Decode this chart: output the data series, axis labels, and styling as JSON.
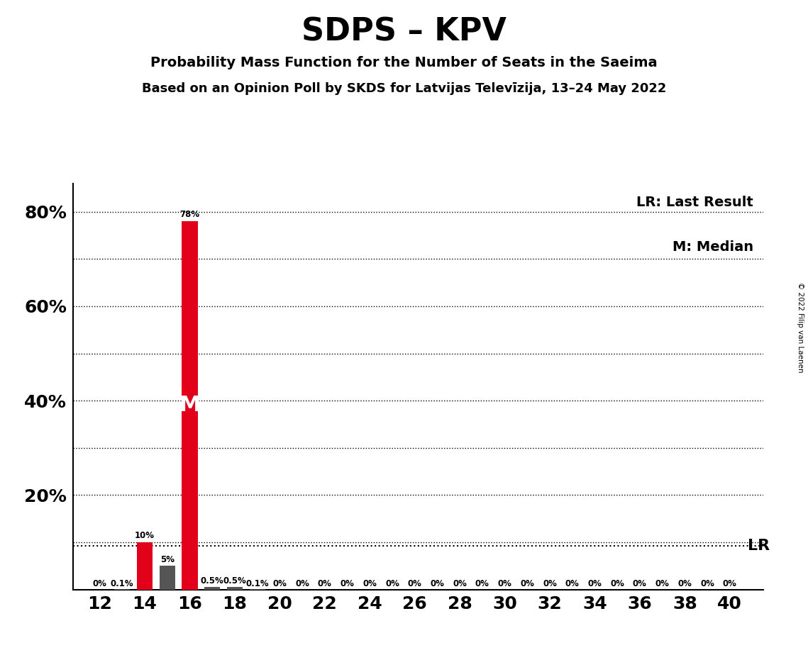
{
  "title": "SDPS – KPV",
  "subtitle1": "Probability Mass Function for the Number of Seats in the Saeima",
  "subtitle2": "Based on an Opinion Poll by SKDS for Latvijas Televīzija, 13–24 May 2022",
  "copyright": "© 2022 Filip van Laenen",
  "seats": [
    12,
    13,
    14,
    15,
    16,
    17,
    18,
    19,
    20,
    21,
    22,
    23,
    24,
    25,
    26,
    27,
    28,
    29,
    30,
    31,
    32,
    33,
    34,
    35,
    36,
    37,
    38,
    39,
    40
  ],
  "probabilities": [
    0.0,
    0.001,
    0.1,
    0.05,
    0.78,
    0.005,
    0.005,
    0.001,
    0.0,
    0.0,
    0.0,
    0.0,
    0.0,
    0.0,
    0.0,
    0.0,
    0.0,
    0.0,
    0.0,
    0.0,
    0.0,
    0.0,
    0.0,
    0.0,
    0.0,
    0.0,
    0.0,
    0.0,
    0.0
  ],
  "bar_colors": [
    "#555555",
    "#555555",
    "#e2001a",
    "#555555",
    "#e2001a",
    "#555555",
    "#555555",
    "#555555",
    "#555555",
    "#555555",
    "#555555",
    "#555555",
    "#555555",
    "#555555",
    "#555555",
    "#555555",
    "#555555",
    "#555555",
    "#555555",
    "#555555",
    "#555555",
    "#555555",
    "#555555",
    "#555555",
    "#555555",
    "#555555",
    "#555555",
    "#555555",
    "#555555"
  ],
  "labels": [
    "0%",
    "0.1%",
    "10%",
    "5%",
    "78%",
    "0.5%",
    "0.5%",
    "0.1%",
    "0%",
    "0%",
    "0%",
    "0%",
    "0%",
    "0%",
    "0%",
    "0%",
    "0%",
    "0%",
    "0%",
    "0%",
    "0%",
    "0%",
    "0%",
    "0%",
    "0%",
    "0%",
    "0%",
    "0%",
    "0%"
  ],
  "median_seat": 16,
  "lr_value": 0.092,
  "yticks": [
    0.1,
    0.2,
    0.3,
    0.4,
    0.5,
    0.6,
    0.7,
    0.8
  ],
  "ytick_labels": [
    "",
    "",
    "",
    "40%",
    "",
    "60%",
    "",
    ""
  ],
  "ymax": 0.86,
  "background_color": "#ffffff",
  "legend_lr": "LR: Last Result",
  "legend_m": "M: Median",
  "lr_label": "LR",
  "bar_width": 0.7
}
